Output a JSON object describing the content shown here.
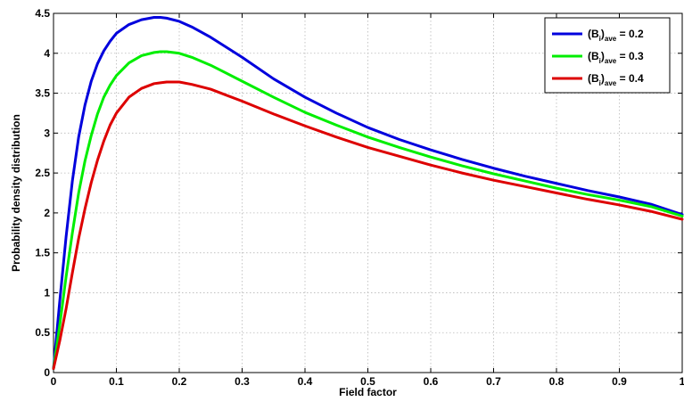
{
  "chart_data": {
    "type": "line",
    "title": "",
    "xlabel": "Field factor",
    "ylabel": "Probability density distribution",
    "xlim": [
      0,
      1
    ],
    "ylim": [
      0,
      4.5
    ],
    "xticks": [
      "0",
      "0.1",
      "0.2",
      "0.3",
      "0.4",
      "0.5",
      "0.6",
      "0.7",
      "0.8",
      "0.9",
      "1"
    ],
    "yticks": [
      "0",
      "0.5",
      "1",
      "1.5",
      "2",
      "2.5",
      "3",
      "3.5",
      "4",
      "4.5"
    ],
    "grid": true,
    "legend_position": "top-right",
    "x": [
      0,
      0.01,
      0.02,
      0.03,
      0.04,
      0.05,
      0.06,
      0.07,
      0.08,
      0.09,
      0.1,
      0.12,
      0.14,
      0.16,
      0.17,
      0.18,
      0.2,
      0.22,
      0.25,
      0.3,
      0.35,
      0.4,
      0.45,
      0.5,
      0.55,
      0.6,
      0.65,
      0.7,
      0.75,
      0.8,
      0.85,
      0.9,
      0.95,
      1.0
    ],
    "series": [
      {
        "name": "(B_i)_ave = 0.2",
        "color": "#0000dd",
        "values": [
          0.05,
          0.9,
          1.7,
          2.4,
          2.95,
          3.35,
          3.65,
          3.87,
          4.03,
          4.15,
          4.25,
          4.36,
          4.42,
          4.45,
          4.45,
          4.44,
          4.4,
          4.33,
          4.2,
          3.95,
          3.68,
          3.45,
          3.25,
          3.07,
          2.92,
          2.79,
          2.67,
          2.56,
          2.46,
          2.37,
          2.28,
          2.2,
          2.11,
          1.98
        ]
      },
      {
        "name": "(B_i)_ave = 0.3",
        "color": "#00ee00",
        "values": [
          0.05,
          0.6,
          1.2,
          1.75,
          2.25,
          2.65,
          2.97,
          3.24,
          3.45,
          3.6,
          3.72,
          3.88,
          3.97,
          4.01,
          4.02,
          4.02,
          4.0,
          3.95,
          3.85,
          3.65,
          3.45,
          3.26,
          3.1,
          2.95,
          2.82,
          2.7,
          2.59,
          2.49,
          2.4,
          2.31,
          2.23,
          2.16,
          2.08,
          1.96
        ]
      },
      {
        "name": "(B_i)_ave = 0.4",
        "color": "#dd0000",
        "values": [
          0.05,
          0.4,
          0.8,
          1.25,
          1.68,
          2.05,
          2.38,
          2.66,
          2.9,
          3.1,
          3.25,
          3.45,
          3.56,
          3.62,
          3.63,
          3.64,
          3.64,
          3.61,
          3.55,
          3.4,
          3.24,
          3.09,
          2.95,
          2.82,
          2.71,
          2.6,
          2.5,
          2.41,
          2.33,
          2.25,
          2.17,
          2.1,
          2.02,
          1.92
        ]
      }
    ]
  },
  "legend": [
    {
      "main": "(B",
      "sub1": "i",
      "mid": ")",
      "sub2": "ave",
      "tail": " = 0.2",
      "color": "#0000dd"
    },
    {
      "main": "(B",
      "sub1": "i",
      "mid": ")",
      "sub2": "ave",
      "tail": " = 0.3",
      "color": "#00ee00"
    },
    {
      "main": "(B",
      "sub1": "i",
      "mid": ")",
      "sub2": "ave",
      "tail": " = 0.4",
      "color": "#dd0000"
    }
  ]
}
